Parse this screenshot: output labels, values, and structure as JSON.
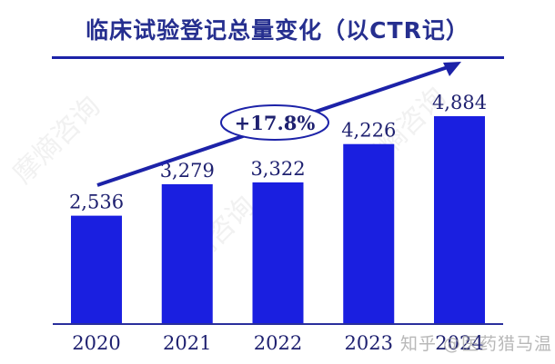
{
  "title": "临床试验登记总量变化（以CTR记）",
  "growth_label": "+17.8%",
  "watermark": "知乎 @医药猎马温",
  "background_watermarks": [
    "摩熵咨询",
    "摩熵咨询",
    "摩熵咨询"
  ],
  "colors": {
    "bar": "#1a1fe0",
    "text": "#1f2170",
    "rule": "#1c22a8"
  },
  "chart_data": {
    "type": "bar",
    "title": "临床试验登记总量变化（以CTR记）",
    "categories": [
      "2020",
      "2021",
      "2022",
      "2023",
      "2024"
    ],
    "values": [
      2536,
      3279,
      3322,
      4226,
      4884
    ],
    "value_labels": [
      "2,536",
      "3,279",
      "3,322",
      "4,226",
      "4,884"
    ],
    "annotation": "+17.8%",
    "annotation_type": "trend-arrow-with-ellipse-label",
    "xlabel": "",
    "ylabel": "",
    "grid": false,
    "legend": null
  }
}
